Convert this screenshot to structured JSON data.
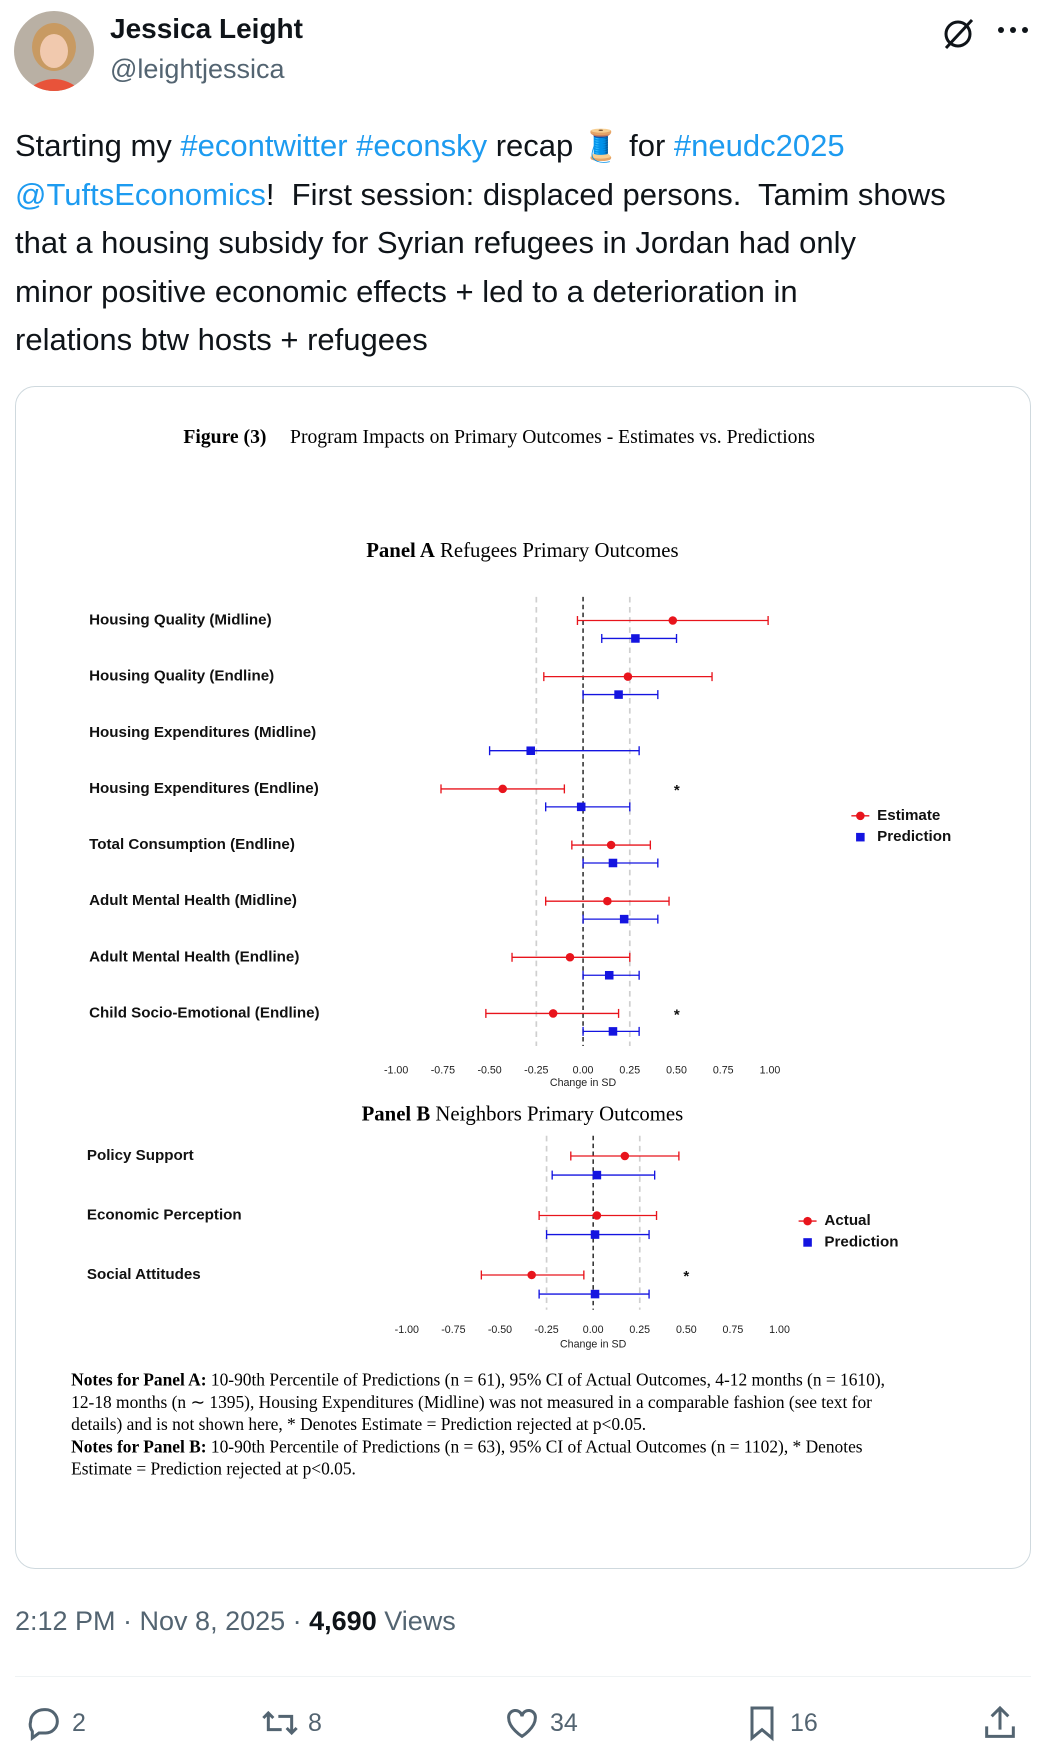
{
  "tweet": {
    "author_name": "Jessica Leight",
    "handle": "@leightjessica",
    "text_lines": [
      [
        {
          "text": "Starting my ",
          "link": false
        },
        {
          "text": "#econtwitter",
          "link": true
        },
        {
          "text": " ",
          "link": false
        },
        {
          "text": "#econsky",
          "link": true
        },
        {
          "text": " recap 🧵 for ",
          "link": false
        },
        {
          "text": "#neudc2025",
          "link": true
        }
      ],
      [
        {
          "text": "@TuftsEconomics",
          "link": true
        },
        {
          "text": "!  First session: displaced persons.  Tamim shows",
          "link": false
        }
      ],
      [
        {
          "text": "that a housing subsidy for Syrian refugees in Jordan had only",
          "link": false
        }
      ],
      [
        {
          "text": "minor positive economic effects + led to a deterioration in",
          "link": false
        }
      ],
      [
        {
          "text": "relations btw hosts + refugees",
          "link": false
        }
      ]
    ],
    "timestamp": "2:12 PM · Nov 8, 2025 · ",
    "views": "4,690",
    "views_label": " Views",
    "replies": "2",
    "reposts": "8",
    "likes": "34",
    "bookmarks": "16"
  },
  "figure": {
    "label": "Figure (3)",
    "caption": "Program Impacts on Primary Outcomes - Estimates vs. Predictions",
    "notes": [
      {
        "label": "Notes for Panel A:",
        "lines": [
          "10-90th Percentile of Predictions (n = 61), 95% CI of Actual Outcomes, 4-12 months (n = 1610),",
          "12-18 months (n ∼ 1395), Housing Expenditures (Midline) was not measured in a comparable fashion (see text for",
          "details) and is not shown here, * Denotes Estimate = Prediction rejected at p<0.05."
        ]
      },
      {
        "label": "Notes for Panel B:",
        "lines": [
          "10-90th Percentile of Predictions (n = 63), 95% CI of Actual Outcomes (n = 1102), * Denotes",
          "Estimate = Prediction rejected at p<0.05."
        ]
      }
    ]
  },
  "chart_data": [
    {
      "type": "dot-interval",
      "panel": "Panel A",
      "title": "Refugees Primary Outcomes",
      "categories": [
        "Housing Quality (Midline)",
        "Housing Quality (Endline)",
        "Housing Expenditures (Midline)",
        "Housing Expenditures (Endline)",
        "Total Consumption (Endline)",
        "Adult Mental Health (Midline)",
        "Adult Mental Health (Endline)",
        "Child Socio-Emotional (Endline)"
      ],
      "series": [
        {
          "name": "Estimate",
          "color": "#e8141c",
          "marker": "circle",
          "values": [
            0.48,
            0.24,
            null,
            -0.43,
            0.15,
            0.13,
            -0.07,
            -0.16
          ],
          "lower": [
            -0.03,
            -0.21,
            null,
            -0.76,
            -0.06,
            -0.2,
            -0.38,
            -0.52
          ],
          "upper": [
            0.99,
            0.69,
            null,
            -0.1,
            0.36,
            0.46,
            0.25,
            0.19
          ]
        },
        {
          "name": "Prediction",
          "color": "#1414e0",
          "marker": "square",
          "values": [
            0.28,
            0.19,
            -0.28,
            -0.01,
            0.16,
            0.22,
            0.14,
            0.16
          ],
          "lower": [
            0.1,
            0.0,
            -0.5,
            -0.2,
            0.0,
            0.0,
            0.0,
            0.0
          ],
          "upper": [
            0.5,
            0.4,
            0.3,
            0.25,
            0.4,
            0.4,
            0.3,
            0.3
          ]
        }
      ],
      "significance": [
        null,
        null,
        null,
        "*",
        null,
        null,
        null,
        "*"
      ],
      "xlim": [
        -1,
        1
      ],
      "xticks": [
        {
          "value": -1,
          "label": "-1.00"
        },
        {
          "value": -0.75,
          "label": "-0.75"
        },
        {
          "value": -0.5,
          "label": "-0.50"
        },
        {
          "value": -0.25,
          "label": "-0.25"
        },
        {
          "value": 0,
          "label": "0.00"
        },
        {
          "value": 0.25,
          "label": "0.25"
        },
        {
          "value": 0.5,
          "label": "0.50"
        },
        {
          "value": 0.75,
          "label": "0.75"
        },
        {
          "value": 1,
          "label": "1.00"
        }
      ],
      "xlabel": "Change in SD",
      "ref_lines": [
        -0.25,
        0.25
      ],
      "zero_line": 0,
      "legend": "right"
    },
    {
      "type": "dot-interval",
      "panel": "Panel B",
      "title": "Neighbors Primary Outcomes",
      "categories": [
        "Policy Support",
        "Economic Perception",
        "Social Attitudes"
      ],
      "series": [
        {
          "name": "Actual",
          "color": "#e8141c",
          "marker": "circle",
          "values": [
            0.17,
            0.02,
            -0.33
          ],
          "lower": [
            -0.12,
            -0.29,
            -0.6
          ],
          "upper": [
            0.46,
            0.34,
            -0.05
          ]
        },
        {
          "name": "Prediction",
          "color": "#1414e0",
          "marker": "square",
          "values": [
            0.02,
            0.01,
            0.01
          ],
          "lower": [
            -0.22,
            -0.25,
            -0.29
          ],
          "upper": [
            0.33,
            0.3,
            0.3
          ]
        }
      ],
      "significance": [
        null,
        null,
        "*"
      ],
      "xlim": [
        -1,
        1
      ],
      "xticks": [
        {
          "value": -1,
          "label": "-1.00"
        },
        {
          "value": -0.75,
          "label": "-0.75"
        },
        {
          "value": -0.5,
          "label": "-0.50"
        },
        {
          "value": -0.25,
          "label": "-0.25"
        },
        {
          "value": 0,
          "label": "0.00"
        },
        {
          "value": 0.25,
          "label": "0.25"
        },
        {
          "value": 0.5,
          "label": "0.50"
        },
        {
          "value": 0.75,
          "label": "0.75"
        },
        {
          "value": 1,
          "label": "1.00"
        }
      ],
      "xlabel": "Change in SD",
      "ref_lines": [
        -0.25,
        0.25
      ],
      "zero_line": 0,
      "legend": "right"
    }
  ]
}
